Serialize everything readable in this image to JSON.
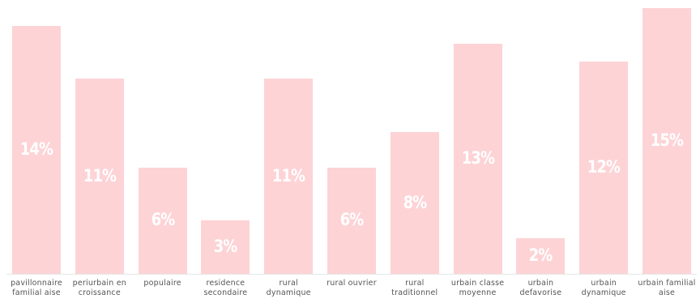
{
  "chart_data": {
    "type": "bar",
    "categories": [
      "pavillonnaire familial aise",
      "periurbain en croissance",
      "populaire",
      "residence secondaire",
      "rural dynamique",
      "rural ouvrier",
      "rural traditionnel",
      "urbain classe moyenne",
      "urbain defavorise",
      "urbain dynamique",
      "urbain familial aise"
    ],
    "values": [
      14,
      11,
      6,
      3,
      11,
      6,
      8,
      13,
      2,
      12,
      15
    ],
    "value_labels": [
      "14%",
      "11%",
      "6%",
      "3%",
      "11%",
      "6%",
      "8%",
      "13%",
      "2%",
      "12%",
      "15%"
    ],
    "color": "#fdd3d6"
  }
}
